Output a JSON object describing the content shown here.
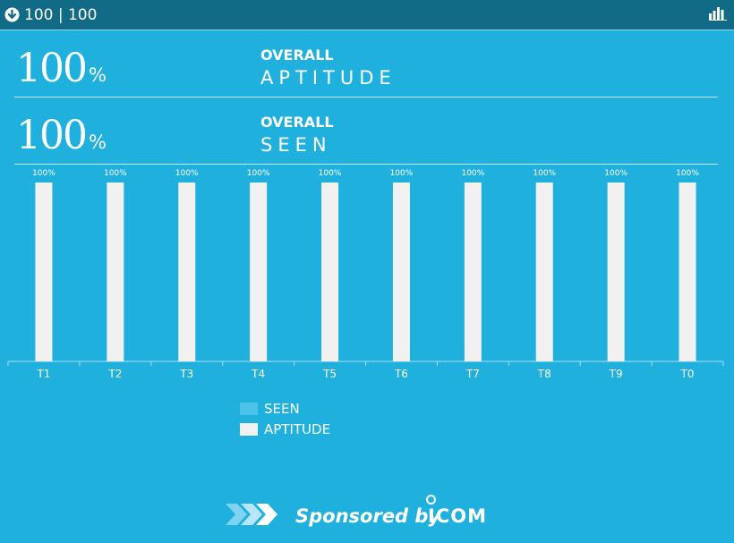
{
  "header": {
    "score_text": "100 | 100",
    "left_icon": "down-arrow-circle-icon",
    "right_icon": "bar-chart-icon"
  },
  "stats": [
    {
      "value": "100",
      "unit": "%",
      "label_top": "OVERALL",
      "label_bottom": "APTITUDE"
    },
    {
      "value": "100",
      "unit": "%",
      "label_top": "OVERALL",
      "label_bottom": "SEEN"
    }
  ],
  "chart_data": {
    "type": "bar",
    "categories": [
      "T1",
      "T2",
      "T3",
      "T4",
      "T5",
      "T6",
      "T7",
      "T8",
      "T9",
      "T0"
    ],
    "series": [
      {
        "name": "SEEN",
        "values": [
          100,
          100,
          100,
          100,
          100,
          100,
          100,
          100,
          100,
          100
        ],
        "color": "#4dc3e9"
      },
      {
        "name": "APTITUDE",
        "values": [
          100,
          100,
          100,
          100,
          100,
          100,
          100,
          100,
          100,
          100
        ],
        "color": "#f1f1f1"
      }
    ],
    "data_labels": [
      "100%",
      "100%",
      "100%",
      "100%",
      "100%",
      "100%",
      "100%",
      "100%",
      "100%",
      "100%"
    ],
    "ylim": [
      0,
      100
    ],
    "grid": false,
    "legend_position": "bottom-center"
  },
  "legend": [
    {
      "label": "SEEN",
      "color": "#4dc3e9"
    },
    {
      "label": "APTITUDE",
      "color": "#f1f1f1"
    }
  ],
  "sponsor": {
    "text": "Sponsored by",
    "brand": "ICOM"
  },
  "colors": {
    "background": "#20b0dd",
    "header": "#116b87",
    "text": "#ffffff"
  }
}
